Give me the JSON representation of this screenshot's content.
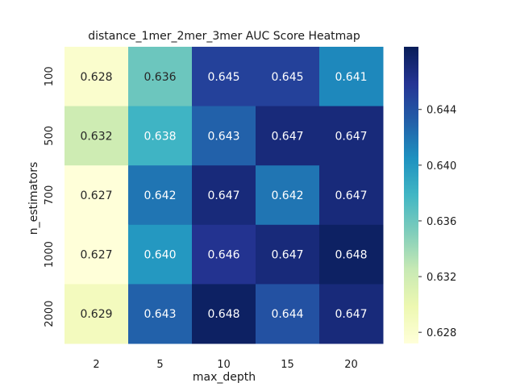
{
  "chart_data": {
    "type": "heatmap",
    "title": "distance_1mer_2mer_3mer AUC Score Heatmap",
    "xlabel": "max_depth",
    "ylabel": "n_estimators",
    "x_categories": [
      "2",
      "5",
      "10",
      "15",
      "20"
    ],
    "y_categories": [
      "100",
      "500",
      "700",
      "1000",
      "2000"
    ],
    "values": [
      [
        0.628,
        0.636,
        0.645,
        0.645,
        0.641
      ],
      [
        0.632,
        0.638,
        0.643,
        0.647,
        0.647
      ],
      [
        0.627,
        0.642,
        0.647,
        0.642,
        0.647
      ],
      [
        0.627,
        0.64,
        0.646,
        0.647,
        0.648
      ],
      [
        0.629,
        0.643,
        0.648,
        0.644,
        0.647
      ]
    ],
    "cell_labels": [
      [
        "0.628",
        "0.636",
        "0.645",
        "0.645",
        "0.641"
      ],
      [
        "0.632",
        "0.638",
        "0.643",
        "0.647",
        "0.647"
      ],
      [
        "0.627",
        "0.642",
        "0.647",
        "0.642",
        "0.647"
      ],
      [
        "0.627",
        "0.640",
        "0.646",
        "0.647",
        "0.648"
      ],
      [
        "0.629",
        "0.643",
        "0.648",
        "0.644",
        "0.647"
      ]
    ],
    "colorbar": {
      "range": [
        0.6272,
        0.6485
      ],
      "ticks": [
        0.628,
        0.632,
        0.636,
        0.64,
        0.644
      ],
      "tick_labels": [
        "0.628",
        "0.632",
        "0.636",
        "0.640",
        "0.644"
      ]
    },
    "colormap": [
      "#ffffd9",
      "#edf8b1",
      "#c7e9b4",
      "#7fcdbb",
      "#41b6c4",
      "#1d91c0",
      "#225ea8",
      "#253494",
      "#081d58"
    ]
  }
}
